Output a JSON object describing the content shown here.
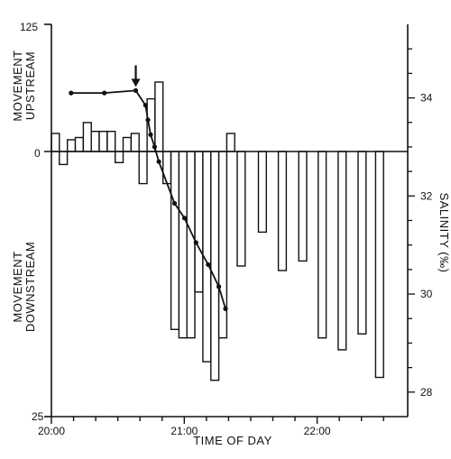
{
  "chart_data": {
    "type": "bar",
    "xlabel": "TIME OF DAY",
    "x_tick_labels": [
      "20:00",
      "21:00",
      "22:00"
    ],
    "left_axis": {
      "top_label": "125",
      "zero_label": "0",
      "bottom_label": "25",
      "label_up_line1": "MOVEMENT",
      "label_up_line2": "UPSTREAM",
      "label_down_line1": "MOVEMENT",
      "label_down_line2": "DOWNSTREAM"
    },
    "right_axis": {
      "label": "SALINITY (‰)",
      "tick_labels": [
        "34",
        "32",
        "30",
        "28"
      ],
      "ticks": [
        34,
        32,
        30,
        28
      ],
      "range": [
        27.5,
        35.5
      ]
    },
    "x_range_minutes": [
      0,
      152
    ],
    "y_range": [
      -100,
      50
    ],
    "bars": [
      {
        "x": 0.0,
        "w": 3.6,
        "v": 7.1
      },
      {
        "x": 3.6,
        "w": 3.6,
        "v": -4.9
      },
      {
        "x": 7.2,
        "w": 3.6,
        "v": 4.6
      },
      {
        "x": 10.8,
        "w": 3.6,
        "v": 5.5
      },
      {
        "x": 14.4,
        "w": 3.6,
        "v": 11.4
      },
      {
        "x": 18.0,
        "w": 3.6,
        "v": 7.9
      },
      {
        "x": 21.6,
        "w": 3.6,
        "v": 7.9
      },
      {
        "x": 25.2,
        "w": 3.6,
        "v": 7.9
      },
      {
        "x": 28.8,
        "w": 3.6,
        "v": -4.2
      },
      {
        "x": 32.4,
        "w": 3.6,
        "v": 5.5
      },
      {
        "x": 36.0,
        "w": 3.6,
        "v": 7.1
      },
      {
        "x": 39.6,
        "w": 3.6,
        "v": -12.1
      },
      {
        "x": 43.2,
        "w": 3.6,
        "v": 20.7
      },
      {
        "x": 46.8,
        "w": 3.6,
        "v": 27.3
      },
      {
        "x": 50.4,
        "w": 3.6,
        "v": -12.1
      },
      {
        "x": 54.0,
        "w": 3.6,
        "v": -67.1
      },
      {
        "x": 57.6,
        "w": 3.6,
        "v": -70.3
      },
      {
        "x": 61.2,
        "w": 3.6,
        "v": -70.3
      },
      {
        "x": 64.8,
        "w": 3.6,
        "v": -53.0
      },
      {
        "x": 68.4,
        "w": 3.6,
        "v": -79.3
      },
      {
        "x": 72.0,
        "w": 3.6,
        "v": -86.3
      },
      {
        "x": 75.6,
        "w": 3.6,
        "v": -70.3
      },
      {
        "x": 79.2,
        "w": 3.6,
        "v": 7.1
      },
      {
        "x": 83.9,
        "w": 3.6,
        "v": -43.2
      },
      {
        "x": 93.5,
        "w": 3.6,
        "v": -30.4
      },
      {
        "x": 102.5,
        "w": 3.6,
        "v": -44.9
      },
      {
        "x": 111.7,
        "w": 3.6,
        "v": -41.3
      },
      {
        "x": 120.5,
        "w": 3.6,
        "v": -70.3
      },
      {
        "x": 129.5,
        "w": 3.6,
        "v": -74.8
      },
      {
        "x": 138.5,
        "w": 3.6,
        "v": -68.8
      },
      {
        "x": 146.4,
        "w": 3.6,
        "v": -85.2
      }
    ],
    "salinity_series": {
      "minutes": [
        8.9,
        23.9,
        38.1,
        42.5,
        43.6,
        44.8,
        46.6,
        48.5,
        55.6,
        60.1,
        65.3,
        70.8,
        75.6,
        78.6
      ],
      "values": [
        34.1,
        34.1,
        34.15,
        33.85,
        33.55,
        33.25,
        33.0,
        32.7,
        31.85,
        31.55,
        31.05,
        30.6,
        30.15,
        29.7
      ]
    },
    "arrow_marker": {
      "minute": 38.1,
      "value": 34.15
    }
  }
}
